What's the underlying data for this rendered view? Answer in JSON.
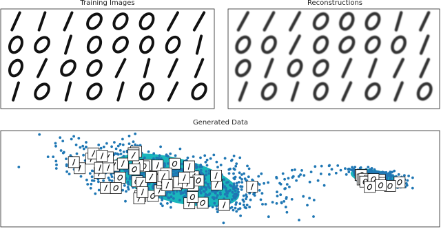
{
  "panels": {
    "training": {
      "title": "Training Images"
    },
    "reconstructions": {
      "title": "Reconstructions"
    },
    "generated": {
      "title": "Generated Data"
    }
  }
}
